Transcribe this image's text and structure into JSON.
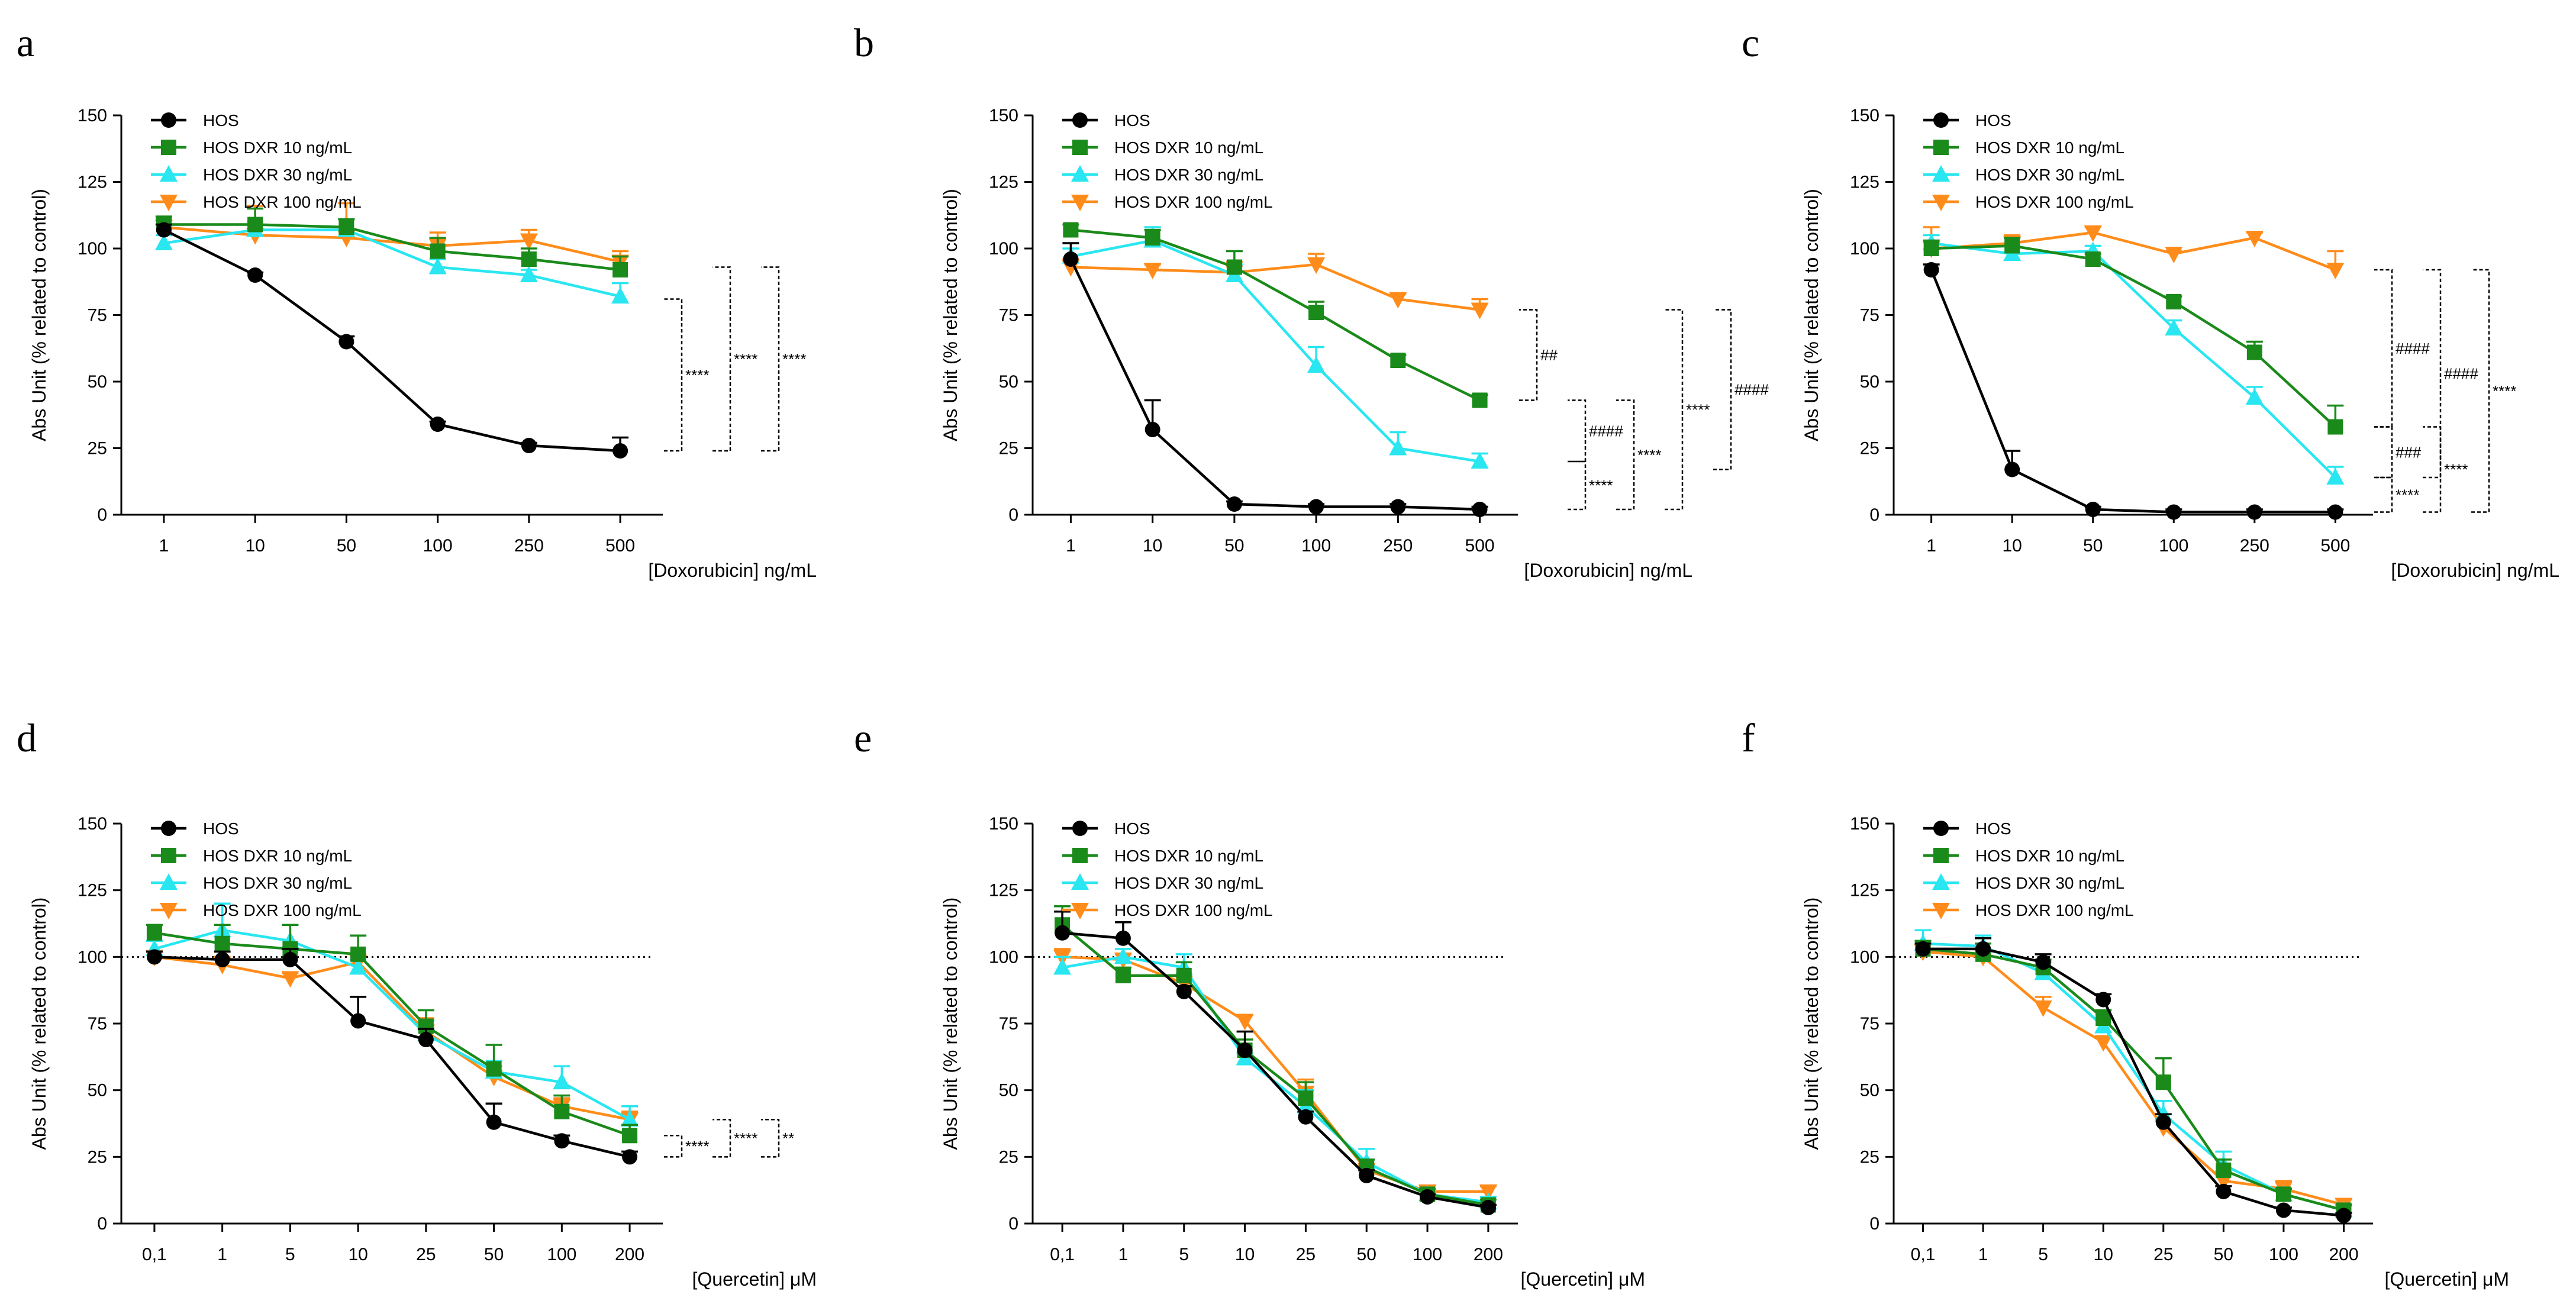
{
  "figure": {
    "panel_letters": [
      "a",
      "b",
      "c",
      "d",
      "e",
      "f"
    ]
  },
  "colors": {
    "HOS": "#000000",
    "HOS DXR 10 ng/mL": "#1a8a1a",
    "HOS DXR 30 ng/mL": "#29e6f0",
    "HOS DXR 100 ng/mL": "#ff8c1a"
  },
  "chart_data": [
    {
      "panel": "a",
      "type": "line",
      "categories": [
        "1",
        "10",
        "50",
        "100",
        "250",
        "500"
      ],
      "xlabel": "[Doxorubicin] ng/mL",
      "ylabel": "Abs Unit (% related to control)",
      "ylim": [
        0,
        150
      ],
      "yticks": [
        0,
        25,
        50,
        75,
        100,
        125,
        150
      ],
      "reference_line": null,
      "legend": [
        "HOS",
        "HOS DXR 10 ng/mL",
        "HOS DXR 30 ng/mL",
        "HOS DXR 100 ng/mL"
      ],
      "series": [
        {
          "name": "HOS",
          "marker": "circle",
          "values": [
            107,
            90,
            65,
            34,
            26,
            24
          ],
          "errors": [
            2,
            1,
            2,
            1,
            1,
            5
          ]
        },
        {
          "name": "HOS DXR 10 ng/mL",
          "marker": "square",
          "values": [
            109,
            109,
            108,
            99,
            96,
            92
          ],
          "errors": [
            3,
            6,
            3,
            5,
            4,
            5
          ]
        },
        {
          "name": "HOS DXR 30 ng/mL",
          "marker": "triangle-up",
          "values": [
            102,
            107,
            107,
            93,
            90,
            82
          ],
          "errors": [
            3,
            3,
            4,
            3,
            2,
            5
          ]
        },
        {
          "name": "HOS DXR 100 ng/mL",
          "marker": "triangle-down",
          "values": [
            108,
            105,
            104,
            101,
            103,
            95
          ],
          "errors": [
            3,
            11,
            13,
            5,
            4,
            4
          ]
        }
      ],
      "annotations": [
        {
          "label": "****",
          "from": 24,
          "to": 81,
          "level": 0
        },
        {
          "label": "****",
          "from": 24,
          "to": 93,
          "level": 1
        },
        {
          "label": "****",
          "from": 24,
          "to": 93,
          "level": 2
        }
      ]
    },
    {
      "panel": "b",
      "type": "line",
      "categories": [
        "1",
        "10",
        "50",
        "100",
        "250",
        "500"
      ],
      "xlabel": "[Doxorubicin] ng/mL",
      "ylabel": "Abs Unit (% related to control)",
      "ylim": [
        0,
        150
      ],
      "yticks": [
        0,
        25,
        50,
        75,
        100,
        125,
        150
      ],
      "reference_line": null,
      "legend": [
        "HOS",
        "HOS DXR 10 ng/mL",
        "HOS DXR 30 ng/mL",
        "HOS DXR 100 ng/mL"
      ],
      "series": [
        {
          "name": "HOS",
          "marker": "circle",
          "values": [
            96,
            32,
            4,
            3,
            3,
            2
          ],
          "errors": [
            6,
            11,
            1,
            1,
            1,
            1
          ]
        },
        {
          "name": "HOS DXR 10 ng/mL",
          "marker": "square",
          "values": [
            107,
            104,
            93,
            76,
            58,
            43
          ],
          "errors": [
            2,
            3,
            6,
            4,
            2,
            2
          ]
        },
        {
          "name": "HOS DXR 30 ng/mL",
          "marker": "triangle-up",
          "values": [
            97,
            103,
            90,
            56,
            25,
            20
          ],
          "errors": [
            3,
            5,
            4,
            7,
            6,
            3
          ]
        },
        {
          "name": "HOS DXR 100 ng/mL",
          "marker": "triangle-down",
          "values": [
            93,
            92,
            91,
            94,
            81,
            77
          ],
          "errors": [
            3,
            2,
            4,
            4,
            2,
            4
          ]
        }
      ],
      "annotations": [
        {
          "label": "##",
          "from": 43,
          "to": 77,
          "level": 0
        },
        {
          "label": "####",
          "from": 20,
          "to": 43,
          "level": 1
        },
        {
          "label": "****",
          "from": 2,
          "to": 20,
          "level": 1
        },
        {
          "label": "****",
          "from": 2,
          "to": 43,
          "level": 2
        },
        {
          "label": "****",
          "from": 2,
          "to": 77,
          "level": 3
        },
        {
          "label": "####",
          "from": 17,
          "to": 77,
          "level": 4
        }
      ]
    },
    {
      "panel": "c",
      "type": "line",
      "categories": [
        "1",
        "10",
        "50",
        "100",
        "250",
        "500"
      ],
      "xlabel": "[Doxorubicin] ng/mL",
      "ylabel": "Abs Unit (% related to control)",
      "ylim": [
        0,
        150
      ],
      "yticks": [
        0,
        25,
        50,
        75,
        100,
        125,
        150
      ],
      "reference_line": null,
      "legend": [
        "HOS",
        "HOS DXR 10 ng/mL",
        "HOS DXR 30 ng/mL",
        "HOS DXR 100 ng/mL"
      ],
      "series": [
        {
          "name": "HOS",
          "marker": "circle",
          "values": [
            92,
            17,
            2,
            1,
            1,
            1
          ],
          "errors": [
            2,
            7,
            1,
            1,
            1,
            1
          ]
        },
        {
          "name": "HOS DXR 10 ng/mL",
          "marker": "square",
          "values": [
            100,
            101,
            96,
            80,
            61,
            33
          ],
          "errors": [
            3,
            3,
            2,
            2,
            4,
            8
          ]
        },
        {
          "name": "HOS DXR 30 ng/mL",
          "marker": "triangle-up",
          "values": [
            102,
            98,
            99,
            70,
            44,
            14
          ],
          "errors": [
            3,
            3,
            2,
            3,
            4,
            4
          ]
        },
        {
          "name": "HOS DXR 100 ng/mL",
          "marker": "triangle-down",
          "values": [
            100,
            102,
            106,
            98,
            104,
            92
          ],
          "errors": [
            8,
            3,
            2,
            1,
            2,
            7
          ]
        }
      ],
      "annotations": [
        {
          "label": "####",
          "from": 33,
          "to": 92,
          "level": 0
        },
        {
          "label": "###",
          "from": 14,
          "to": 33,
          "level": 0
        },
        {
          "label": "****",
          "from": 1,
          "to": 14,
          "level": 0
        },
        {
          "label": "####",
          "from": 14,
          "to": 92,
          "level": 1
        },
        {
          "label": "****",
          "from": 1,
          "to": 33,
          "level": 1
        },
        {
          "label": "****",
          "from": 1,
          "to": 92,
          "level": 2
        }
      ]
    },
    {
      "panel": "d",
      "type": "line",
      "categories": [
        "0,1",
        "1",
        "5",
        "10",
        "25",
        "50",
        "100",
        "200"
      ],
      "xlabel": "[Quercetin] μM",
      "ylabel": "Abs Unit (% related to control)",
      "ylim": [
        0,
        150
      ],
      "yticks": [
        0,
        25,
        50,
        75,
        100,
        125,
        150
      ],
      "reference_line": 100,
      "legend": [
        "HOS",
        "HOS DXR 10 ng/mL",
        "HOS DXR 30 ng/mL",
        "HOS DXR 100 ng/mL"
      ],
      "series": [
        {
          "name": "HOS",
          "marker": "circle",
          "values": [
            100,
            99,
            99,
            76,
            69,
            38,
            31,
            25
          ],
          "errors": [
            2,
            3,
            4,
            9,
            4,
            7,
            2,
            2
          ]
        },
        {
          "name": "HOS DXR 10 ng/mL",
          "marker": "square",
          "values": [
            109,
            105,
            103,
            101,
            74,
            58,
            42,
            33
          ],
          "errors": [
            3,
            7,
            9,
            7,
            6,
            9,
            6,
            4
          ]
        },
        {
          "name": "HOS DXR 30 ng/mL",
          "marker": "triangle-up",
          "values": [
            103,
            110,
            106,
            96,
            71,
            57,
            53,
            39
          ],
          "errors": [
            3,
            10,
            6,
            3,
            5,
            4,
            6,
            5
          ]
        },
        {
          "name": "HOS DXR 100 ng/mL",
          "marker": "triangle-down",
          "values": [
            100,
            97,
            92,
            98,
            72,
            55,
            44,
            39
          ],
          "errors": [
            2,
            3,
            2,
            3,
            5,
            4,
            3,
            3
          ]
        }
      ],
      "annotations": [
        {
          "label": "****",
          "from": 25,
          "to": 33,
          "level": 0
        },
        {
          "label": "****",
          "from": 25,
          "to": 39,
          "level": 1
        },
        {
          "label": "**",
          "from": 25,
          "to": 39,
          "level": 2
        }
      ]
    },
    {
      "panel": "e",
      "type": "line",
      "categories": [
        "0,1",
        "1",
        "5",
        "10",
        "25",
        "50",
        "100",
        "200"
      ],
      "xlabel": "[Quercetin] μM",
      "ylabel": "Abs Unit (% related to control)",
      "ylim": [
        0,
        150
      ],
      "yticks": [
        0,
        25,
        50,
        75,
        100,
        125,
        150
      ],
      "reference_line": 100,
      "legend": [
        "HOS",
        "HOS DXR 10 ng/mL",
        "HOS DXR 30 ng/mL",
        "HOS DXR 100 ng/mL"
      ],
      "series": [
        {
          "name": "HOS",
          "marker": "circle",
          "values": [
            109,
            107,
            87,
            65,
            40,
            18,
            10,
            6
          ],
          "errors": [
            8,
            6,
            2,
            7,
            2,
            2,
            1,
            1
          ]
        },
        {
          "name": "HOS DXR 10 ng/mL",
          "marker": "square",
          "values": [
            112,
            93,
            93,
            65,
            47,
            21,
            11,
            7
          ],
          "errors": [
            7,
            3,
            5,
            4,
            6,
            3,
            2,
            2
          ]
        },
        {
          "name": "HOS DXR 30 ng/mL",
          "marker": "triangle-up",
          "values": [
            96,
            100,
            96,
            62,
            44,
            23,
            11,
            8
          ],
          "errors": [
            4,
            3,
            5,
            2,
            6,
            5,
            2,
            2
          ]
        },
        {
          "name": "HOS DXR 100 ng/mL",
          "marker": "triangle-down",
          "values": [
            100,
            99,
            90,
            76,
            49,
            20,
            12,
            12
          ],
          "errors": [
            3,
            2,
            3,
            2,
            5,
            2,
            2,
            2
          ]
        }
      ],
      "annotations": []
    },
    {
      "panel": "f",
      "type": "line",
      "categories": [
        "0,1",
        "1",
        "5",
        "10",
        "25",
        "50",
        "100",
        "200"
      ],
      "xlabel": "[Quercetin] μM",
      "ylabel": "Abs Unit (% related to control)",
      "ylim": [
        0,
        150
      ],
      "yticks": [
        0,
        25,
        50,
        75,
        100,
        125,
        150
      ],
      "reference_line": 100,
      "legend": [
        "HOS",
        "HOS DXR 10 ng/mL",
        "HOS DXR 30 ng/mL",
        "HOS DXR 100 ng/mL"
      ],
      "series": [
        {
          "name": "HOS",
          "marker": "circle",
          "values": [
            103,
            103,
            98,
            84,
            38,
            12,
            5,
            3
          ],
          "errors": [
            2,
            4,
            3,
            2,
            3,
            2,
            1,
            1
          ]
        },
        {
          "name": "HOS DXR 10 ng/mL",
          "marker": "square",
          "values": [
            103,
            101,
            96,
            77,
            53,
            20,
            11,
            5
          ],
          "errors": [
            3,
            4,
            3,
            3,
            9,
            4,
            2,
            2
          ]
        },
        {
          "name": "HOS DXR 30 ng/mL",
          "marker": "triangle-up",
          "values": [
            105,
            104,
            94,
            74,
            41,
            22,
            11,
            5
          ],
          "errors": [
            5,
            4,
            4,
            3,
            5,
            5,
            2,
            2
          ]
        },
        {
          "name": "HOS DXR 100 ng/mL",
          "marker": "triangle-down",
          "values": [
            102,
            100,
            81,
            68,
            36,
            16,
            13,
            7
          ],
          "errors": [
            3,
            2,
            4,
            2,
            3,
            3,
            3,
            2
          ]
        }
      ],
      "annotations": []
    }
  ]
}
